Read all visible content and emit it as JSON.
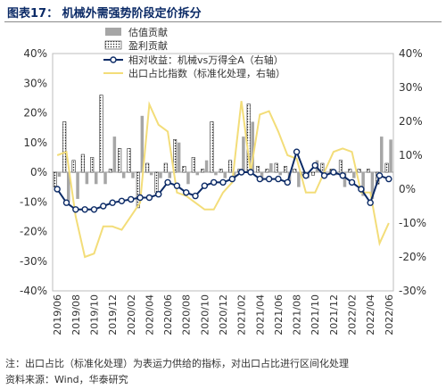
{
  "title": "图表17：  机械外需强势阶段定价拆分",
  "footnote1": "注：出口占比（标准化处理）为表运力供给的指标，对出口占比进行区间化处理",
  "footnote2": "资料来源：Wind，华泰研究",
  "colors": {
    "valuation": "#a6a6a6",
    "profit_fill": "#ffffff",
    "profit_dots": "#222222",
    "relative_line": "#0b2a66",
    "export_line": "#f3dd79",
    "text": "#333333",
    "title": "#0b2a66"
  },
  "chart_data": {
    "type": "bar",
    "categories": [
      "2019/06",
      "2019/07",
      "2019/08",
      "2019/09",
      "2019/10",
      "2019/11",
      "2019/12",
      "2020/01",
      "2020/02",
      "2020/03",
      "2020/04",
      "2020/05",
      "2020/06",
      "2020/07",
      "2020/08",
      "2020/09",
      "2020/10",
      "2020/11",
      "2020/12",
      "2021/01",
      "2021/02",
      "2021/03",
      "2021/04",
      "2021/05",
      "2021/06",
      "2021/07",
      "2021/08",
      "2021/09",
      "2021/10",
      "2021/11",
      "2021/12",
      "2022/01",
      "2022/02",
      "2022/03",
      "2022/04",
      "2022/05",
      "2022/06"
    ],
    "x_tick_labels": [
      "2019/06",
      "2019/08",
      "2019/10",
      "2019/12",
      "2020/02",
      "2020/04",
      "2020/06",
      "2020/08",
      "2020/10",
      "2020/12",
      "2021/02",
      "2021/04",
      "2021/06",
      "2021/08",
      "2021/10",
      "2021/12",
      "2022/02",
      "2022/04",
      "2022/06"
    ],
    "y_left": {
      "ylim": [
        -40,
        40
      ],
      "ticks": [
        "40%",
        "30%",
        "20%",
        "10%",
        "0%",
        "-10%",
        "-20%",
        "-30%",
        "-40%"
      ],
      "tick_values": [
        40,
        30,
        20,
        10,
        0,
        -10,
        -20,
        -30,
        -40
      ]
    },
    "y_right": {
      "ylim": [
        -30,
        40
      ],
      "ticks": [
        "40%",
        "30%",
        "20%",
        "10%",
        "0%",
        "-10%",
        "-20%",
        "-30%"
      ],
      "tick_values": [
        40,
        30,
        20,
        10,
        0,
        -10,
        -20,
        -30
      ]
    },
    "series": [
      {
        "name": "估值贡献",
        "type": "bar",
        "axis": "left",
        "values": [
          -1.5,
          -10,
          -9,
          -4,
          -4,
          -4,
          12,
          -2,
          -2,
          19,
          -1,
          -2,
          -2,
          10,
          -4,
          -1,
          4,
          -1,
          -2,
          -2,
          12,
          17,
          -3,
          3,
          -1,
          -3,
          -5,
          -2,
          4,
          0,
          -1,
          -5,
          -2,
          -8,
          -9,
          12,
          11
        ]
      },
      {
        "name": "盈利贡献",
        "type": "bar",
        "axis": "left",
        "values": [
          -5,
          17,
          4,
          6,
          5,
          26,
          1,
          8,
          8,
          -12,
          3,
          -7,
          3,
          11,
          2,
          5,
          1,
          17,
          1,
          4,
          1,
          23,
          2,
          1,
          3,
          2,
          1,
          -1,
          -1,
          3,
          1,
          4,
          1,
          1,
          1,
          -4,
          3
        ]
      },
      {
        "name": "相对收益：机械vs万得全A（右轴）",
        "type": "line",
        "axis": "right",
        "marker": "circle",
        "values": [
          0,
          -4,
          -6,
          -6,
          -6,
          -5,
          -4,
          -3.5,
          -3,
          -2.5,
          -2.5,
          -1.5,
          2,
          1,
          -1,
          -2,
          1,
          2,
          2,
          3,
          5,
          5,
          3,
          3,
          3,
          2,
          11,
          4,
          7,
          4,
          5,
          4,
          2,
          0,
          -4,
          4,
          3
        ]
      },
      {
        "name": "出口占比指数（标准化处理，右轴）",
        "type": "line",
        "axis": "right",
        "values": [
          10,
          11,
          -8,
          -20,
          -19,
          -11,
          -11,
          -12,
          -8,
          -4,
          25,
          19,
          17,
          -1,
          -2,
          -4,
          -6,
          -6,
          -1,
          2,
          26,
          5,
          22,
          23,
          17,
          10,
          9,
          -1,
          -1,
          5,
          11,
          12,
          11,
          -1,
          -1,
          -16,
          -10
        ]
      }
    ],
    "legend": "top-right"
  }
}
